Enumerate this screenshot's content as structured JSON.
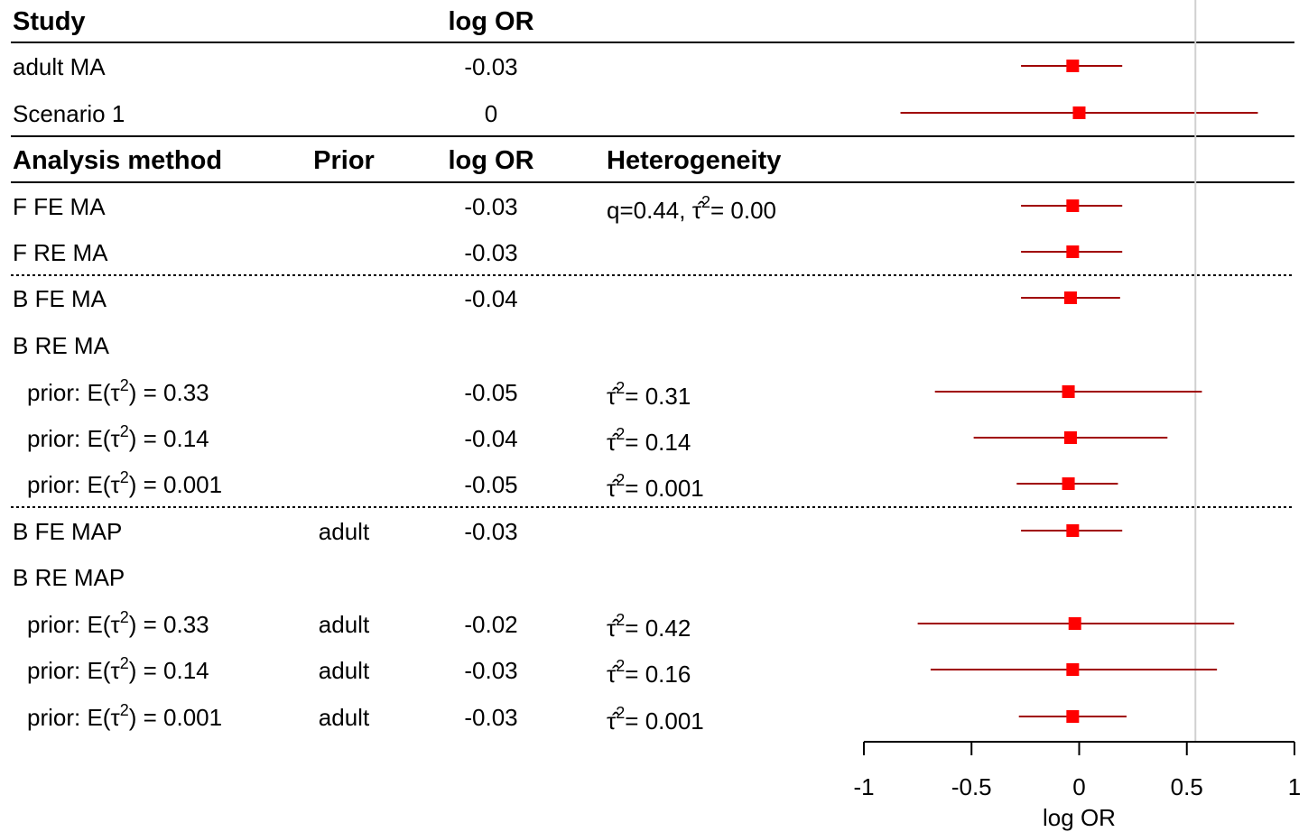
{
  "headers": {
    "study": "Study",
    "log_or": "log OR",
    "analysis_method": "Analysis method",
    "prior": "Prior",
    "log_or2": "log OR",
    "heterogeneity": "Heterogeneity"
  },
  "colors": {
    "marker": "#ff0000",
    "ci_line": "#a00000",
    "reference_line": "#d0d0d0"
  },
  "chart_data": {
    "type": "forest",
    "xlabel": "log OR",
    "xlim": [
      -1,
      1
    ],
    "xticks": [
      -1,
      -0.5,
      0,
      0.5,
      1
    ],
    "xtick_labels": [
      "-1",
      "-0.5",
      "0",
      "0.5",
      "1"
    ],
    "reference_line": 0.54,
    "study_rows": [
      {
        "label": "adult MA",
        "logor": "-0.03",
        "est": -0.03,
        "lo": -0.27,
        "hi": 0.2
      },
      {
        "label": "Scenario 1",
        "logor": "0",
        "est": 0.0,
        "lo": -0.83,
        "hi": 0.83
      }
    ],
    "method_rows": [
      {
        "label": "F FE MA",
        "prior": "",
        "logor": "-0.03",
        "het": "q=0.44, τ̂",
        "het_sup": "2",
        "het_val": "= 0.00",
        "est": -0.03,
        "lo": -0.27,
        "hi": 0.2
      },
      {
        "label": "F RE MA",
        "prior": "",
        "logor": "-0.03",
        "het": "",
        "het_sup": "",
        "het_val": "",
        "est": -0.03,
        "lo": -0.27,
        "hi": 0.2
      },
      {
        "label": "B FE MA",
        "prior": "",
        "logor": "-0.04",
        "het": "",
        "het_sup": "",
        "het_val": "",
        "est": -0.04,
        "lo": -0.27,
        "hi": 0.19
      },
      {
        "label": "B RE MA",
        "prior": "",
        "logor": "",
        "het": "",
        "het_sup": "",
        "het_val": "",
        "est": null,
        "lo": null,
        "hi": null
      },
      {
        "label": "prior: E(τ",
        "label_sup": "2",
        "label_end": ") = 0.33",
        "indent": true,
        "prior": "",
        "logor": "-0.05",
        "het": "τ̂",
        "het_sup": "2",
        "het_val": "= 0.31",
        "est": -0.05,
        "lo": -0.67,
        "hi": 0.57
      },
      {
        "label": "prior: E(τ",
        "label_sup": "2",
        "label_end": ") = 0.14",
        "indent": true,
        "prior": "",
        "logor": "-0.04",
        "het": "τ̂",
        "het_sup": "2",
        "het_val": "= 0.14",
        "est": -0.04,
        "lo": -0.49,
        "hi": 0.41
      },
      {
        "label": "prior: E(τ",
        "label_sup": "2",
        "label_end": ") = 0.001",
        "indent": true,
        "prior": "",
        "logor": "-0.05",
        "het": "τ̂",
        "het_sup": "2",
        "het_val": "= 0.001",
        "est": -0.05,
        "lo": -0.29,
        "hi": 0.18
      },
      {
        "label": "B FE MAP",
        "prior": "adult",
        "logor": "-0.03",
        "het": "",
        "het_sup": "",
        "het_val": "",
        "est": -0.03,
        "lo": -0.27,
        "hi": 0.2
      },
      {
        "label": "B RE MAP",
        "prior": "",
        "logor": "",
        "het": "",
        "het_sup": "",
        "het_val": "",
        "est": null,
        "lo": null,
        "hi": null
      },
      {
        "label": "prior: E(τ",
        "label_sup": "2",
        "label_end": ") = 0.33",
        "indent": true,
        "prior": "adult",
        "logor": "-0.02",
        "het": "τ̂",
        "het_sup": "2",
        "het_val": "= 0.42",
        "est": -0.02,
        "lo": -0.75,
        "hi": 0.72
      },
      {
        "label": "prior: E(τ",
        "label_sup": "2",
        "label_end": ") = 0.14",
        "indent": true,
        "prior": "adult",
        "logor": "-0.03",
        "het": "τ̂",
        "het_sup": "2",
        "het_val": "= 0.16",
        "est": -0.03,
        "lo": -0.69,
        "hi": 0.64
      },
      {
        "label": "prior: E(τ",
        "label_sup": "2",
        "label_end": ") = 0.001",
        "indent": true,
        "prior": "adult",
        "logor": "-0.03",
        "het": "τ̂",
        "het_sup": "2",
        "het_val": "= 0.001",
        "est": -0.03,
        "lo": -0.28,
        "hi": 0.22
      }
    ]
  }
}
